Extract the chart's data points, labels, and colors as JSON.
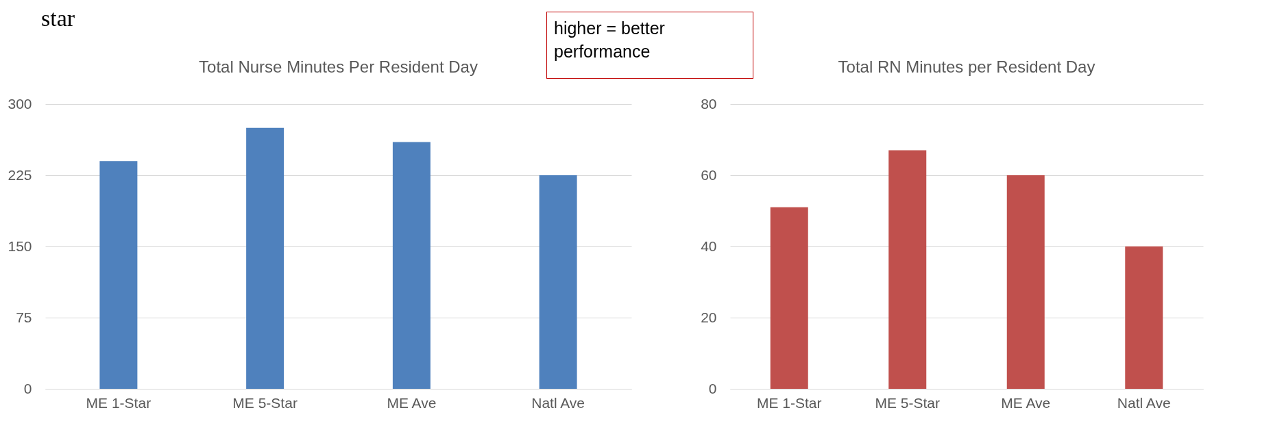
{
  "chart_data": [
    {
      "type": "bar",
      "title": "Total Nurse Minutes Per Resident Day",
      "categories": [
        "ME 1-Star",
        "ME 5-Star",
        "ME Ave",
        "Natl Ave"
      ],
      "values": [
        240,
        275,
        260,
        225
      ],
      "color": "#4f81bd",
      "ylim": [
        0,
        300
      ],
      "yticks": [
        0,
        75,
        150,
        225,
        300
      ],
      "grid": "y",
      "annotations": [
        "star",
        "higher = better performance"
      ]
    },
    {
      "type": "bar",
      "title": "Total RN Minutes per Resident Day",
      "categories": [
        "ME 1-Star",
        "ME 5-Star",
        "ME Ave",
        "Natl Ave"
      ],
      "values": [
        51,
        67,
        60,
        40
      ],
      "color": "#c0504d",
      "ylim": [
        0,
        80
      ],
      "yticks": [
        0,
        20,
        40,
        60,
        80
      ],
      "grid": "y"
    }
  ]
}
